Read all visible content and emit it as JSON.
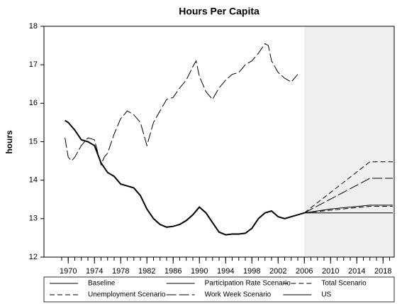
{
  "chart_data": {
    "type": "line",
    "title": "Hours Per Capita",
    "ylabel": "hours",
    "xlim": [
      1966.3,
      2019.7
    ],
    "ylim": [
      12,
      18
    ],
    "xticks": [
      1970,
      1974,
      1978,
      1982,
      1986,
      1990,
      1994,
      1998,
      2002,
      2006,
      2010,
      2014,
      2018
    ],
    "xminorticks": [
      1969,
      1970,
      1971,
      1972,
      1973,
      1974,
      1975,
      1976,
      1977,
      1978,
      1979,
      1980,
      1981,
      1982,
      1983,
      1984,
      1985,
      1986,
      1987,
      1988,
      1989,
      1990,
      1991,
      1992,
      1993,
      1994,
      1995,
      1996,
      1997,
      1998,
      1999,
      2000,
      2001,
      2002,
      2003,
      2004,
      2005,
      2006,
      2007,
      2008,
      2009,
      2010,
      2011,
      2012,
      2013,
      2014,
      2015,
      2016,
      2017,
      2018,
      2019
    ],
    "yticks": [
      12,
      13,
      14,
      15,
      16,
      17,
      18
    ],
    "shaded_xrange": [
      2006,
      2019.7
    ],
    "shade_color": "#efefef",
    "series": [
      {
        "name": "Baseline",
        "color": "#000000",
        "dash": "solid",
        "width": 1,
        "x": [
          2006,
          2019.5
        ],
        "values": [
          13.15,
          13.15
        ]
      },
      {
        "name": "Participation Rate Scenario",
        "color": "#000000",
        "dash": "solid",
        "width": 1,
        "x": [
          2006,
          2010,
          2016,
          2019.5
        ],
        "values": [
          13.15,
          13.25,
          13.35,
          13.35
        ]
      },
      {
        "name": "Total Scenario",
        "color": "#000000",
        "dash": "dashed",
        "width": 1,
        "x": [
          2006,
          2016,
          2019.5
        ],
        "values": [
          13.15,
          14.48,
          14.48
        ]
      },
      {
        "name": "Unemployment Scenario",
        "color": "#000000",
        "dash": "dashed",
        "width": 1,
        "x": [
          2006,
          2010,
          2016,
          2019.5
        ],
        "values": [
          13.15,
          13.22,
          13.32,
          13.32
        ]
      },
      {
        "name": "Work Week Scenario",
        "color": "#000000",
        "dash": "longdash",
        "width": 1,
        "x": [
          2006,
          2016,
          2019.5
        ],
        "values": [
          13.15,
          14.05,
          14.05
        ]
      },
      {
        "name": "US",
        "color": "#000000",
        "dash": "solid",
        "width": 2,
        "x": [
          1969.5,
          1970,
          1971,
          1972,
          1973,
          1974,
          1975,
          1976,
          1977,
          1978,
          1979,
          1980,
          1981,
          1982,
          1983,
          1984,
          1985,
          1986,
          1987,
          1988,
          1989,
          1990,
          1991,
          1992,
          1993,
          1994,
          1995,
          1996,
          1997,
          1998,
          1999,
          2000,
          2001,
          2002,
          2003,
          2004,
          2005,
          2006
        ],
        "values": [
          15.55,
          15.5,
          15.3,
          15.05,
          15.0,
          14.9,
          14.45,
          14.2,
          14.1,
          13.9,
          13.85,
          13.8,
          13.6,
          13.25,
          13.0,
          12.85,
          12.78,
          12.8,
          12.85,
          12.95,
          13.1,
          13.3,
          13.15,
          12.9,
          12.65,
          12.58,
          12.6,
          12.6,
          12.62,
          12.75,
          13.0,
          13.15,
          13.2,
          13.05,
          13.0,
          13.05,
          13.1,
          13.15
        ]
      },
      {
        "color": "#000000",
        "dash": "longdash",
        "width": 1,
        "x": [
          1969.5,
          1970,
          1970.5,
          1971,
          1972,
          1973,
          1974,
          1975,
          1975.5,
          1976,
          1977,
          1978,
          1979,
          1980,
          1981,
          1982,
          1983,
          1984,
          1985,
          1986,
          1987,
          1988,
          1989,
          1989.5,
          1990,
          1991,
          1992,
          1993,
          1994,
          1995,
          1996,
          1997,
          1998,
          1999,
          2000,
          2000.5,
          2001,
          2002,
          2003,
          2004,
          2005
        ],
        "values": [
          15.1,
          14.6,
          14.5,
          14.6,
          14.9,
          15.1,
          15.05,
          14.4,
          14.6,
          14.7,
          15.2,
          15.6,
          15.8,
          15.7,
          15.5,
          14.9,
          15.5,
          15.8,
          16.1,
          16.15,
          16.4,
          16.6,
          16.95,
          17.1,
          16.7,
          16.3,
          16.1,
          16.4,
          16.6,
          16.75,
          16.8,
          17.0,
          17.1,
          17.3,
          17.55,
          17.5,
          17.1,
          16.8,
          16.65,
          16.55,
          16.75
        ]
      }
    ]
  }
}
